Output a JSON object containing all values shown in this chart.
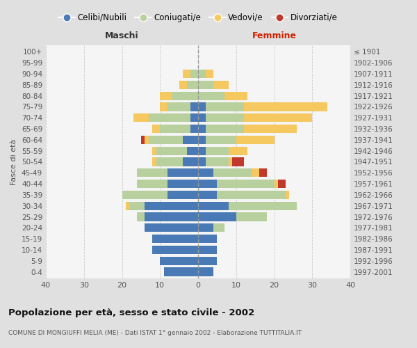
{
  "age_groups": [
    "0-4",
    "5-9",
    "10-14",
    "15-19",
    "20-24",
    "25-29",
    "30-34",
    "35-39",
    "40-44",
    "45-49",
    "50-54",
    "55-59",
    "60-64",
    "65-69",
    "70-74",
    "75-79",
    "80-84",
    "85-89",
    "90-94",
    "95-99",
    "100+"
  ],
  "birth_years": [
    "1997-2001",
    "1992-1996",
    "1987-1991",
    "1982-1986",
    "1977-1981",
    "1972-1976",
    "1967-1971",
    "1962-1966",
    "1957-1961",
    "1952-1956",
    "1947-1951",
    "1942-1946",
    "1937-1941",
    "1932-1936",
    "1927-1931",
    "1922-1926",
    "1917-1921",
    "1912-1916",
    "1907-1911",
    "1902-1906",
    "≤ 1901"
  ],
  "male": {
    "celibi": [
      9,
      10,
      12,
      12,
      14,
      14,
      14,
      8,
      8,
      8,
      4,
      3,
      4,
      2,
      2,
      2,
      0,
      0,
      0,
      0,
      0
    ],
    "coniugati": [
      0,
      0,
      0,
      0,
      0,
      2,
      4,
      12,
      8,
      8,
      7,
      8,
      9,
      8,
      11,
      6,
      7,
      3,
      2,
      0,
      0
    ],
    "vedovi": [
      0,
      0,
      0,
      0,
      0,
      0,
      1,
      0,
      0,
      0,
      1,
      1,
      1,
      2,
      4,
      2,
      3,
      2,
      2,
      0,
      0
    ],
    "divorziati": [
      0,
      0,
      0,
      0,
      0,
      0,
      0,
      0,
      0,
      0,
      0,
      0,
      1,
      0,
      0,
      0,
      0,
      0,
      0,
      0,
      0
    ]
  },
  "female": {
    "nubili": [
      4,
      5,
      5,
      5,
      4,
      10,
      8,
      5,
      5,
      4,
      2,
      2,
      2,
      2,
      2,
      2,
      0,
      0,
      0,
      0,
      0
    ],
    "coniugate": [
      0,
      0,
      0,
      0,
      3,
      8,
      18,
      18,
      15,
      10,
      6,
      6,
      8,
      10,
      10,
      10,
      7,
      4,
      2,
      0,
      0
    ],
    "vedove": [
      0,
      0,
      0,
      0,
      0,
      0,
      0,
      1,
      1,
      2,
      1,
      5,
      10,
      14,
      18,
      22,
      6,
      4,
      2,
      0,
      0
    ],
    "divorziate": [
      0,
      0,
      0,
      0,
      0,
      0,
      0,
      0,
      2,
      2,
      3,
      0,
      0,
      0,
      0,
      0,
      0,
      0,
      0,
      0,
      0
    ]
  },
  "colors": {
    "celibi_nubili": "#4a7ab5",
    "coniugati": "#b8cf9e",
    "vedovi": "#f5c860",
    "divorziati": "#c0392b"
  },
  "xlim": 40,
  "title": "Popolazione per età, sesso e stato civile - 2002",
  "subtitle": "COMUNE DI MONGIUFFI MELIA (ME) - Dati ISTAT 1° gennaio 2002 - Elaborazione TUTTITALIA.IT",
  "ylabel_left": "Fasce di età",
  "xlabel_male": "Maschi",
  "xlabel_female": "Femmine",
  "background_color": "#e0e0e0",
  "plot_background": "#f5f5f5",
  "legend_labels": [
    "Celibi/Nubili",
    "Coniugati/e",
    "Vedovi/e",
    "Divorziati/e"
  ]
}
